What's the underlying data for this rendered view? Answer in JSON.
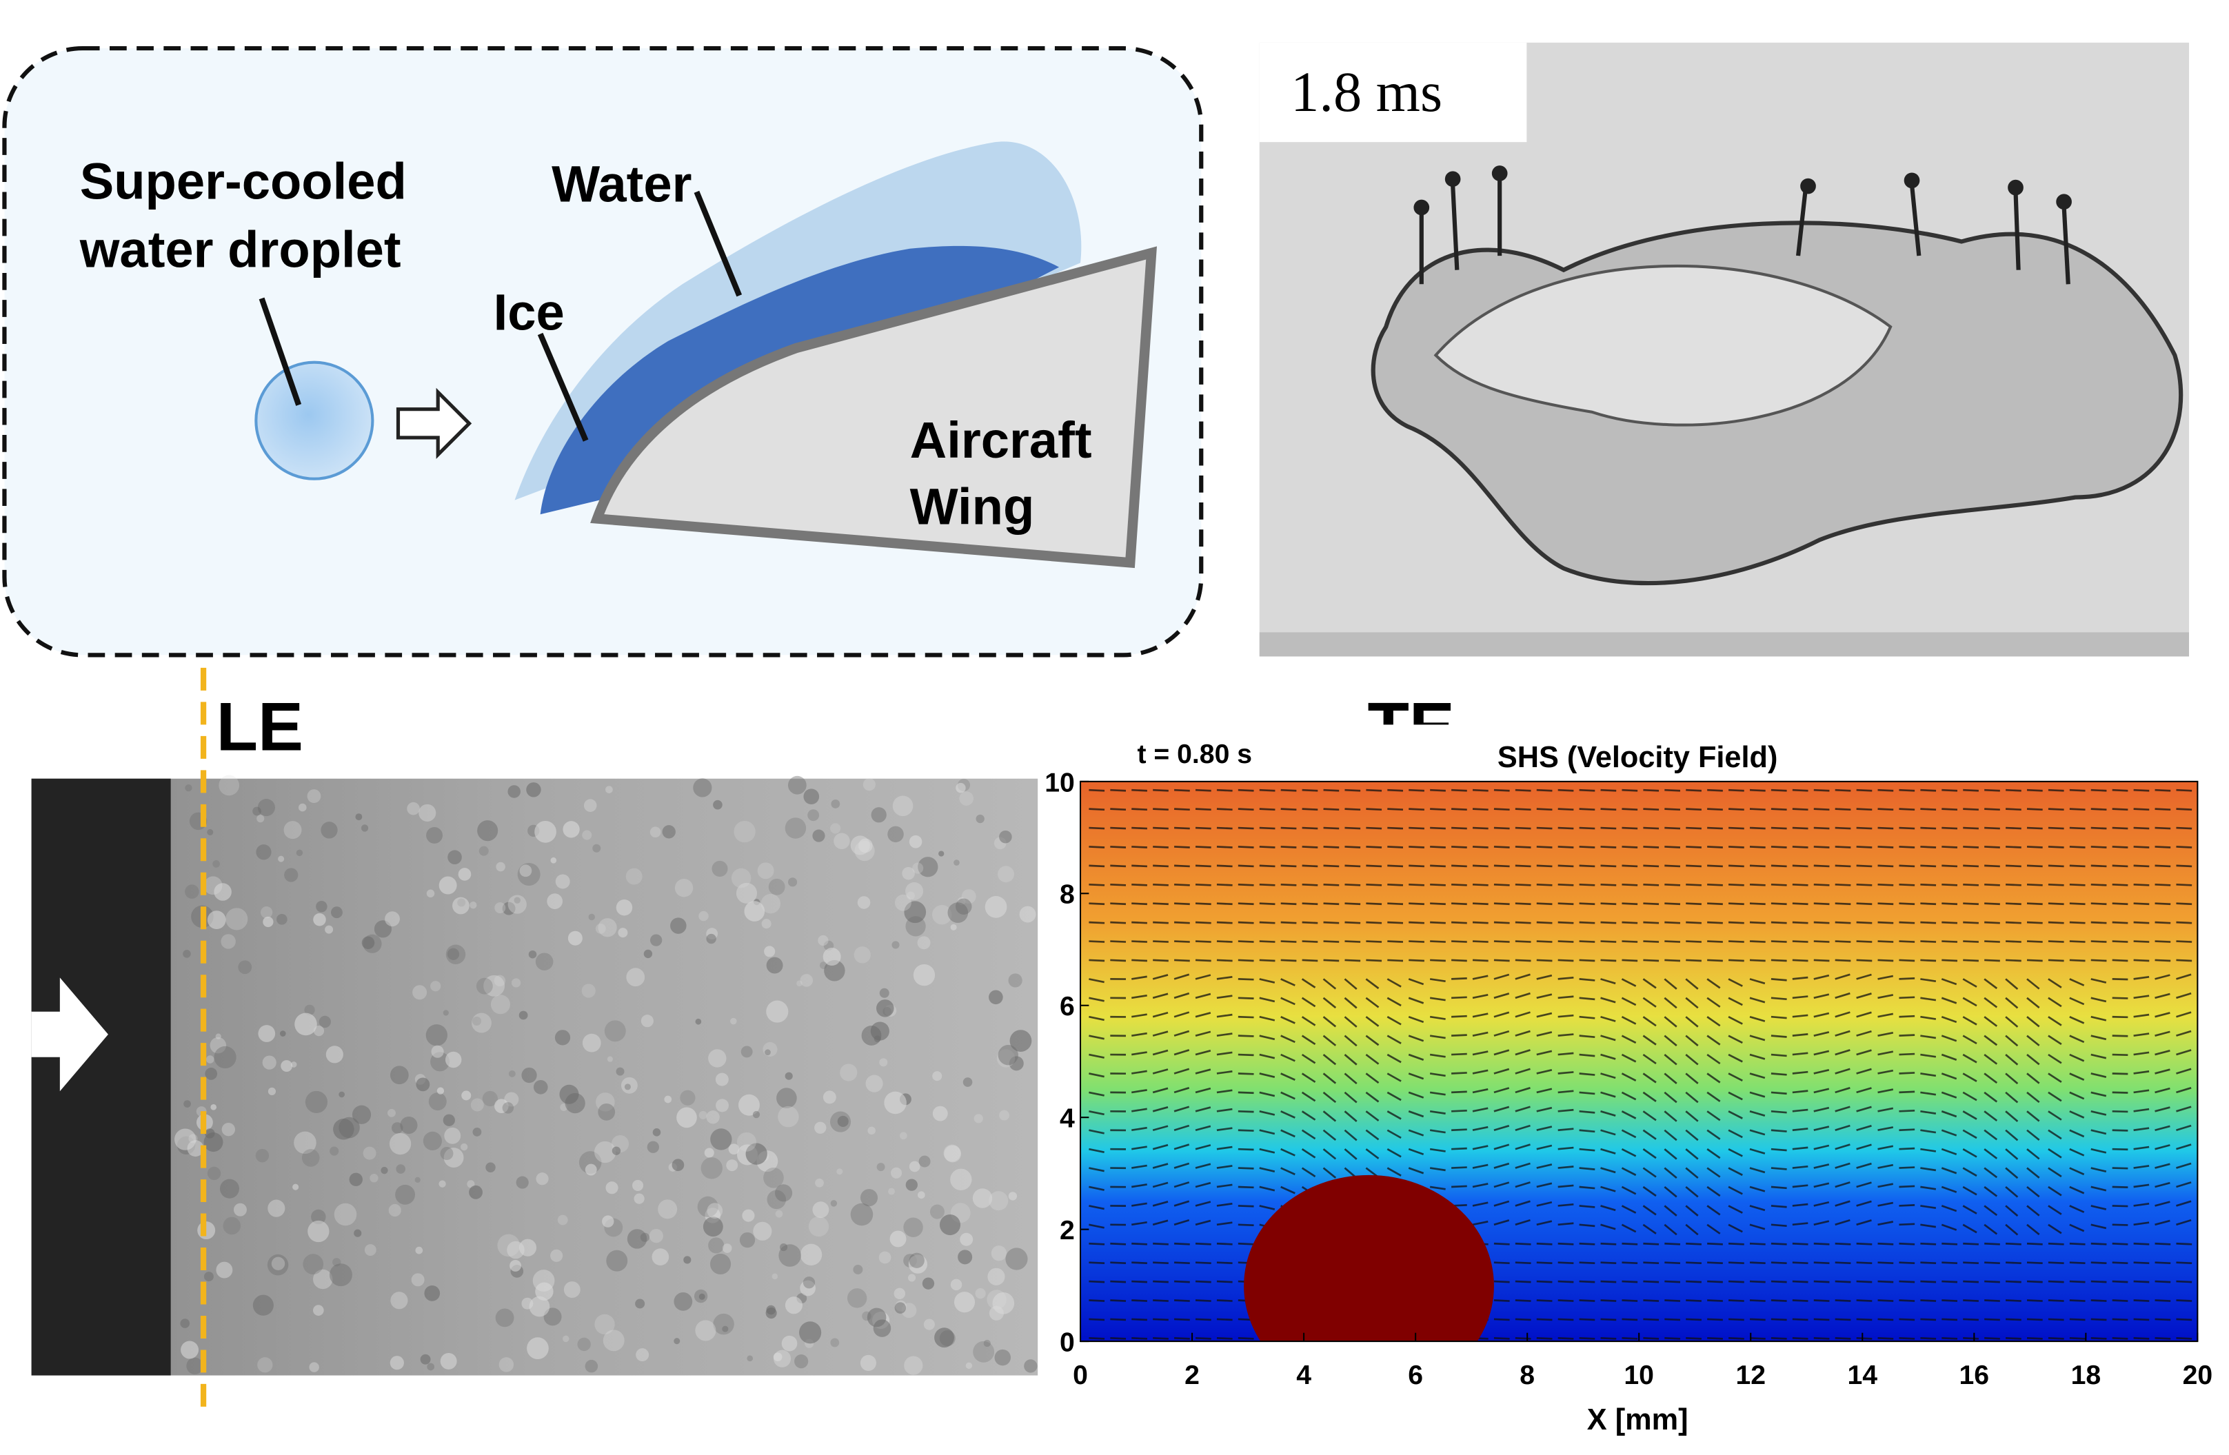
{
  "icing_panel": {
    "droplet_label": [
      "Super-cooled",
      "water droplet"
    ],
    "water_label": "Water",
    "ice_label": "Ice",
    "wing_label": [
      "Aircraft",
      "Wing"
    ]
  },
  "splash_panel": {
    "time_label": "1.8 ms"
  },
  "surface_panel": {
    "leading_edge_label": "LE",
    "trailing_edge_label": "TE"
  },
  "velocity_plot": {
    "time_label": "t = 0.80 s",
    "title": "SHS (Velocity Field)",
    "xlabel": "X [mm]",
    "xlim": [
      0,
      20
    ],
    "ylim": [
      0,
      10
    ],
    "xticks": [
      0,
      2,
      4,
      6,
      8,
      10,
      12,
      14,
      16,
      18,
      20
    ],
    "yticks": [
      0,
      2,
      4,
      6,
      8,
      10
    ]
  }
}
